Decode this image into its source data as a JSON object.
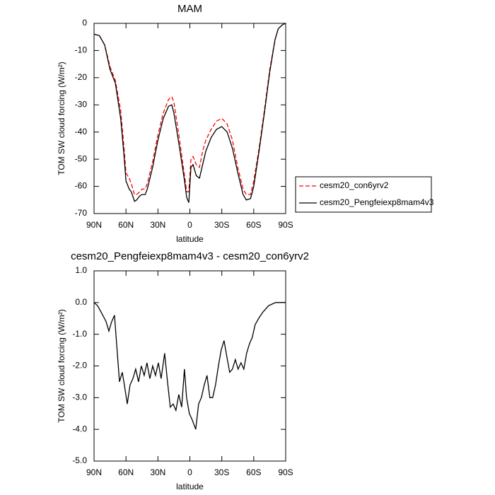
{
  "chart_data": [
    {
      "type": "line",
      "title": "MAM",
      "x_label": "latitude",
      "y_label": "TOM SW cloud forcing (W/m²)",
      "x": [
        90,
        85,
        80,
        75,
        70,
        65,
        62,
        60,
        57,
        55,
        52,
        50,
        47,
        45,
        42,
        40,
        35,
        30,
        25,
        20,
        17,
        15,
        10,
        5,
        3,
        1,
        -1,
        -3,
        -6,
        -9,
        -12,
        -15,
        -20,
        -25,
        -30,
        -35,
        -40,
        -45,
        -50,
        -53,
        -57,
        -60,
        -65,
        -70,
        -75,
        -80,
        -83,
        -87,
        -90
      ],
      "series": [
        {
          "name": "cesm20_con6yrv2",
          "color": "#ff0000",
          "dash": true,
          "values": [
            -4,
            -4.5,
            -8,
            -16,
            -21,
            -32,
            -45,
            -55,
            -57,
            -59,
            -63,
            -63,
            -62,
            -61,
            -61,
            -59,
            -51,
            -41,
            -33,
            -28,
            -27,
            -29,
            -42,
            -56,
            -62,
            -62,
            -50,
            -49,
            -52,
            -53,
            -47,
            -43,
            -39,
            -36,
            -35,
            -37,
            -43,
            -53,
            -61,
            -63,
            -63,
            -58,
            -46,
            -32,
            -17,
            -6,
            -2,
            -0.5,
            0
          ]
        },
        {
          "name": "cesm20_Pengfeiexp8mam4v3",
          "color": "#000000",
          "dash": false,
          "values": [
            -4,
            -4.5,
            -8,
            -17,
            -22,
            -35,
            -48,
            -58,
            -61,
            -62,
            -65.5,
            -65,
            -63.5,
            -63,
            -63,
            -61,
            -53,
            -43,
            -35,
            -30.5,
            -30,
            -33,
            -45,
            -58,
            -64,
            -66,
            -53,
            -52,
            -56,
            -57,
            -52,
            -47,
            -42,
            -39,
            -38,
            -40,
            -46,
            -55,
            -63,
            -65,
            -64.5,
            -60,
            -47,
            -33,
            -18,
            -6,
            -2,
            -0.5,
            0
          ]
        }
      ],
      "xlim": [
        90,
        -90
      ],
      "xticks": [
        {
          "value": 90,
          "label": "90N"
        },
        {
          "value": 60,
          "label": "60N"
        },
        {
          "value": 30,
          "label": "30N"
        },
        0,
        {
          "value": -30,
          "label": "30S"
        },
        {
          "value": -60,
          "label": "60S"
        },
        {
          "value": -90,
          "label": "90S"
        }
      ],
      "ylim": [
        -70,
        0
      ],
      "yticks": [
        0,
        -10,
        -20,
        -30,
        -40,
        -50,
        -60,
        -70
      ],
      "legend": "right"
    },
    {
      "type": "line",
      "title": "cesm20_Pengfeiexp8mam4v3 - cesm20_con6yrv2",
      "x_label": "latitude",
      "y_label": "TOM SW cloud forcing (W/m²)",
      "x": [
        90,
        86.7,
        83.4,
        78.7,
        76.1,
        73.4,
        70.8,
        68.8,
        66.1,
        63.5,
        61.5,
        58.8,
        56.2,
        53.5,
        50.9,
        48.2,
        45.6,
        42.9,
        40.3,
        37.6,
        34.9,
        32.3,
        29.6,
        27,
        23.7,
        21,
        18.4,
        15.7,
        13.1,
        10.4,
        7.7,
        5.1,
        3.1,
        0.5,
        -2.2,
        -5.5,
        -8.2,
        -10.8,
        -13.5,
        -16.1,
        -18.8,
        -21.4,
        -24.1,
        -26.8,
        -29.4,
        -32.1,
        -34.7,
        -37.4,
        -40,
        -42.7,
        -45.3,
        -48,
        -50.7,
        -53.3,
        -56,
        -58.6,
        -61.3,
        -64.6,
        -68.6,
        -73.9,
        -80.5,
        -90
      ],
      "values": [
        0,
        -0.1,
        -0.3,
        -0.6,
        -0.9,
        -0.6,
        -0.4,
        -1.3,
        -2.5,
        -2.2,
        -2.6,
        -3.2,
        -2.6,
        -2.4,
        -2.1,
        -2.5,
        -2,
        -2.3,
        -1.9,
        -2.4,
        -2,
        -2.3,
        -1.9,
        -2.4,
        -1.6,
        -2.5,
        -3.3,
        -3.2,
        -3.4,
        -2.9,
        -3.3,
        -2.1,
        -3,
        -3.5,
        -3.7,
        -4,
        -3.2,
        -3,
        -2.6,
        -2.3,
        -3,
        -3,
        -2.6,
        -2,
        -1.5,
        -1.2,
        -1.7,
        -2.2,
        -2.1,
        -1.8,
        -2.1,
        -1.9,
        -2.1,
        -1.6,
        -1.3,
        -1.1,
        -0.7,
        -0.5,
        -0.3,
        -0.1,
        0,
        0
      ],
      "color": "#000000",
      "xlim": [
        90,
        -90
      ],
      "xticks": [
        {
          "value": 90,
          "label": "90N"
        },
        {
          "value": 60,
          "label": "60N"
        },
        {
          "value": 30,
          "label": "30N"
        },
        0,
        {
          "value": -30,
          "label": "30S"
        },
        {
          "value": -60,
          "label": "60S"
        },
        {
          "value": -90,
          "label": "90S"
        }
      ],
      "ylim": [
        -5,
        1
      ],
      "yticks": [
        {
          "value": 1,
          "label": "1.0"
        },
        {
          "value": 0,
          "label": "0.0"
        },
        {
          "value": -1,
          "label": "-1.0"
        },
        {
          "value": -2,
          "label": "-2.0"
        },
        {
          "value": -3,
          "label": "-3.0"
        },
        {
          "value": -4,
          "label": "-4.0"
        },
        {
          "value": -5,
          "label": "-5.0"
        }
      ]
    }
  ]
}
